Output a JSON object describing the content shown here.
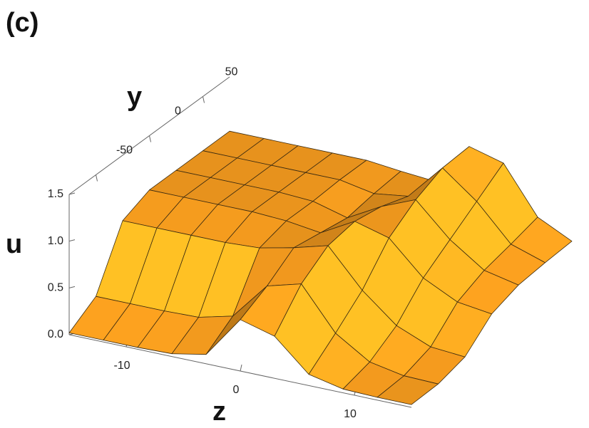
{
  "chart_data": {
    "type": "surface",
    "panel_label": "(c)",
    "xlabel": "z",
    "ylabel": "y",
    "zlabel": "u",
    "x": [
      -15,
      -12,
      -9,
      -6,
      -3,
      0,
      3,
      6,
      9,
      12,
      15
    ],
    "y": [
      -75,
      -50,
      -25,
      0,
      25,
      50,
      75
    ],
    "values": [
      [
        0.02,
        0.02,
        0.02,
        0.03,
        0.1,
        0.55,
        0.45,
        0.12,
        0.04,
        0.03,
        0.03
      ],
      [
        0.2,
        0.2,
        0.2,
        0.21,
        0.3,
        0.7,
        0.8,
        0.35,
        0.12,
        0.05,
        0.04
      ],
      [
        0.8,
        0.8,
        0.8,
        0.8,
        0.82,
        0.9,
        1.0,
        0.6,
        0.3,
        0.15,
        0.12
      ],
      [
        0.92,
        0.92,
        0.92,
        0.92,
        0.9,
        0.85,
        1.05,
        0.95,
        0.6,
        0.42,
        0.37
      ],
      [
        0.92,
        0.92,
        0.92,
        0.92,
        0.9,
        0.8,
        1.0,
        1.15,
        0.8,
        0.55,
        0.47
      ],
      [
        0.92,
        0.92,
        0.92,
        0.92,
        0.92,
        0.85,
        0.9,
        1.28,
        1.0,
        0.62,
        0.5
      ],
      [
        0.92,
        0.92,
        0.92,
        0.92,
        0.92,
        0.88,
        0.85,
        1.3,
        1.2,
        0.7,
        0.52
      ]
    ],
    "color": "#f39a1e",
    "xlim": [
      -15,
      15
    ],
    "ylim": [
      -75,
      75
    ],
    "zlim": [
      0,
      1.5
    ],
    "xticks": [
      -10,
      0,
      10
    ],
    "yticks": [
      -50,
      0,
      50
    ],
    "zticks": [
      {
        "value": 0,
        "label": "0.0"
      },
      {
        "value": 0.5,
        "label": "0.5"
      },
      {
        "value": 1,
        "label": "1.0"
      },
      {
        "value": 1.5,
        "label": "1.5"
      }
    ]
  }
}
